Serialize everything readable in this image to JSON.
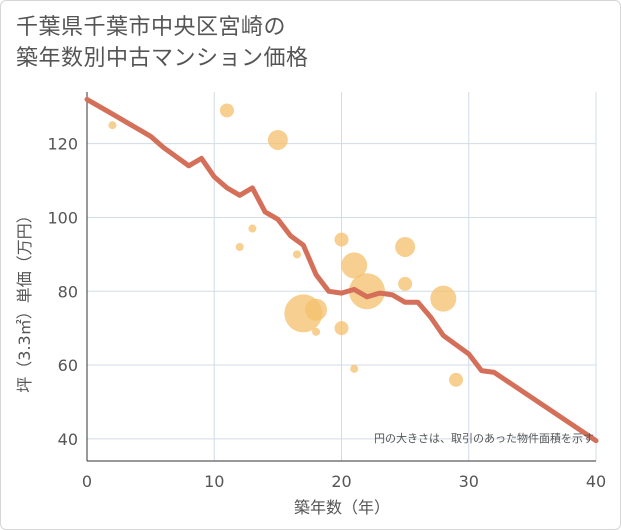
{
  "title_lines": [
    "千葉県千葉市中央区宮崎の",
    "築年数別中古マンション価格"
  ],
  "colors": {
    "line": "#d4705a",
    "bubble": "#f4c06c",
    "grid": "#d0dce8",
    "text": "#555555"
  },
  "chart_data": {
    "type": "scatter",
    "title": "千葉県千葉市中央区宮崎の築年数別中古マンション価格",
    "xlabel": "築年数（年）",
    "ylabel": "坪（3.3㎡）単価（万円）",
    "xlim": [
      0,
      40
    ],
    "ylim": [
      34,
      134
    ],
    "xticks": [
      0,
      10,
      20,
      30,
      40
    ],
    "yticks": [
      40,
      60,
      80,
      100,
      120
    ],
    "grid": true,
    "note": "円の大きさは、取引のあった物件面積を示す",
    "trend_line": {
      "x": [
        0,
        2,
        4,
        5,
        6,
        8,
        9,
        10,
        11,
        12,
        13,
        14,
        15,
        16,
        17,
        18,
        19,
        20,
        21,
        22,
        23,
        24,
        25,
        26,
        27,
        28,
        30,
        31,
        32,
        40
      ],
      "y": [
        132,
        128,
        124,
        122,
        119,
        114,
        116,
        111,
        108,
        106,
        108,
        101.5,
        99.5,
        95,
        92.5,
        84.5,
        80,
        79.5,
        80.5,
        78.5,
        79.5,
        79,
        77,
        77,
        73,
        68,
        63,
        58.5,
        58,
        39.5
      ]
    },
    "bubbles": [
      {
        "x": 2,
        "y": 125,
        "size": 4
      },
      {
        "x": 11,
        "y": 129,
        "size": 7
      },
      {
        "x": 15,
        "y": 121,
        "size": 10
      },
      {
        "x": 12,
        "y": 92,
        "size": 4
      },
      {
        "x": 13,
        "y": 97,
        "size": 4
      },
      {
        "x": 16.5,
        "y": 90,
        "size": 4
      },
      {
        "x": 17,
        "y": 74,
        "size": 19
      },
      {
        "x": 18,
        "y": 75,
        "size": 11
      },
      {
        "x": 18,
        "y": 69,
        "size": 4
      },
      {
        "x": 20,
        "y": 94,
        "size": 7
      },
      {
        "x": 20,
        "y": 70,
        "size": 7
      },
      {
        "x": 21,
        "y": 87,
        "size": 13
      },
      {
        "x": 21,
        "y": 59,
        "size": 4
      },
      {
        "x": 22,
        "y": 80,
        "size": 18
      },
      {
        "x": 25,
        "y": 92,
        "size": 10
      },
      {
        "x": 25,
        "y": 82,
        "size": 7
      },
      {
        "x": 28,
        "y": 78,
        "size": 13
      },
      {
        "x": 29,
        "y": 56,
        "size": 7
      }
    ]
  }
}
